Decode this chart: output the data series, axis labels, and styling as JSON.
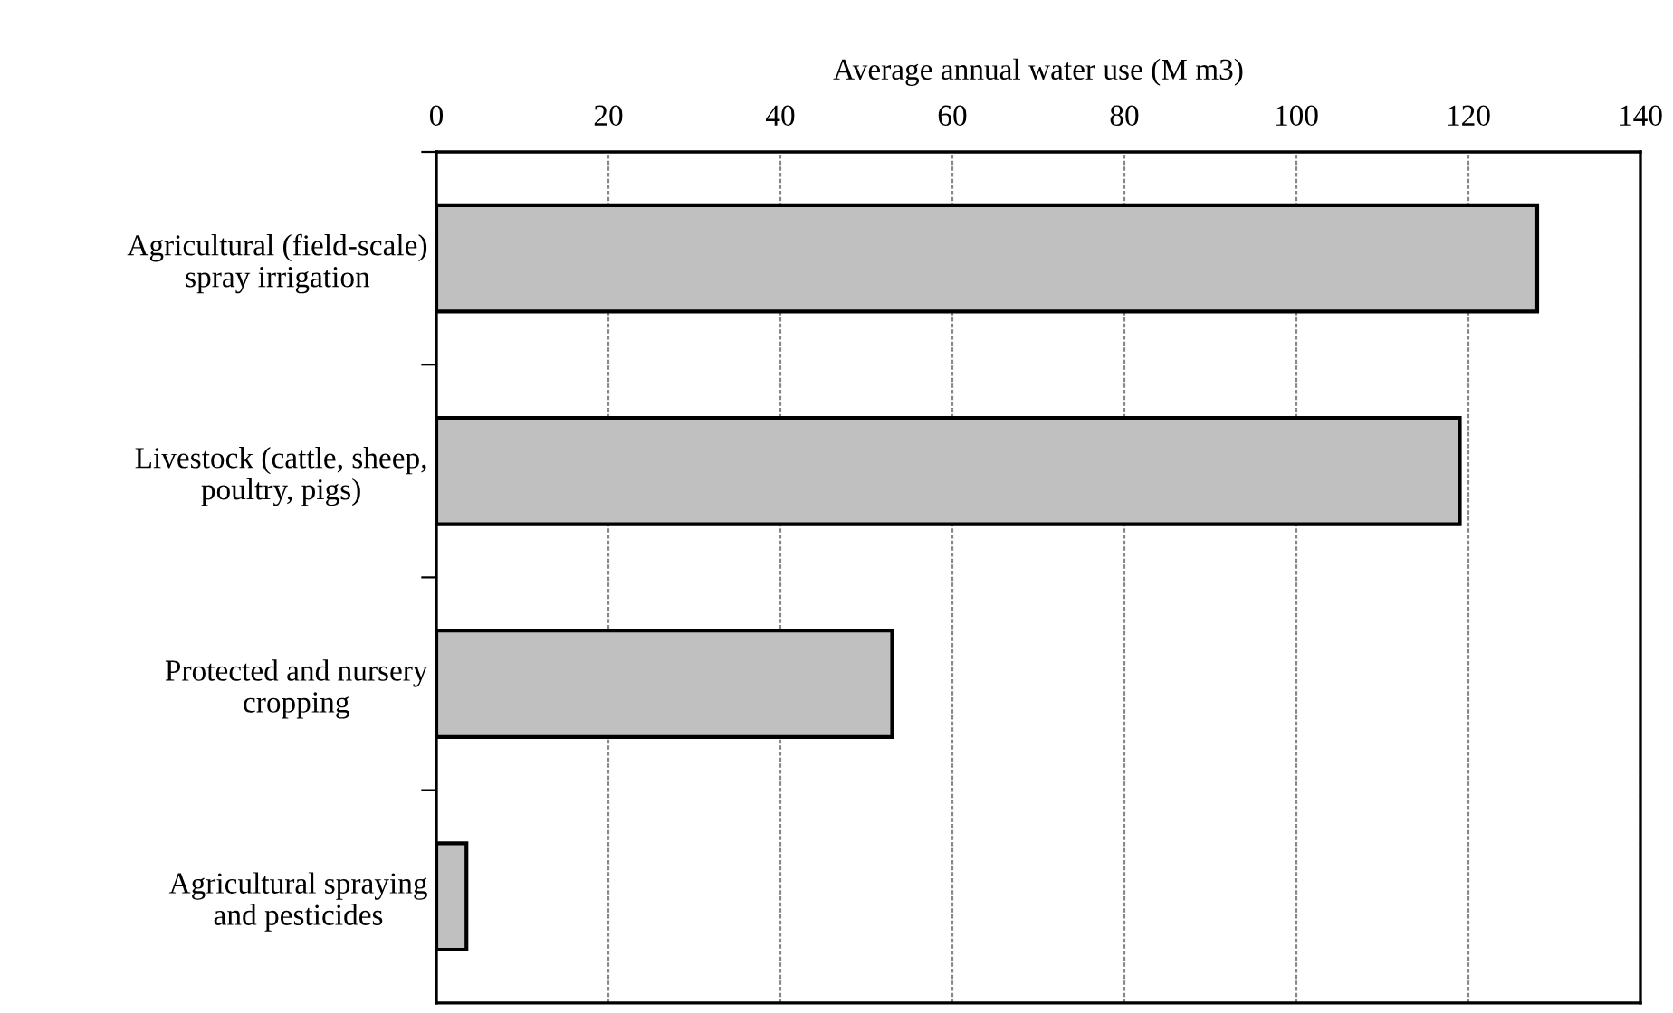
{
  "chart_data": {
    "type": "bar",
    "orientation": "horizontal",
    "xlabel": "Average annual water use (M m3)",
    "categories": [
      "Agricultural (field-scale)\nspray irrigation",
      "Livestock (cattle, sheep,\npoultry, pigs)",
      "Protected and nursery\ncropping",
      "Agricultural spraying\nand pesticides"
    ],
    "values": [
      128,
      119,
      53,
      3.5
    ],
    "color": "#c0c0c0",
    "xlim": [
      0,
      140
    ],
    "xticks": [
      0,
      20,
      40,
      60,
      80,
      100,
      120,
      140
    ],
    "grid": "x",
    "legend": false
  }
}
